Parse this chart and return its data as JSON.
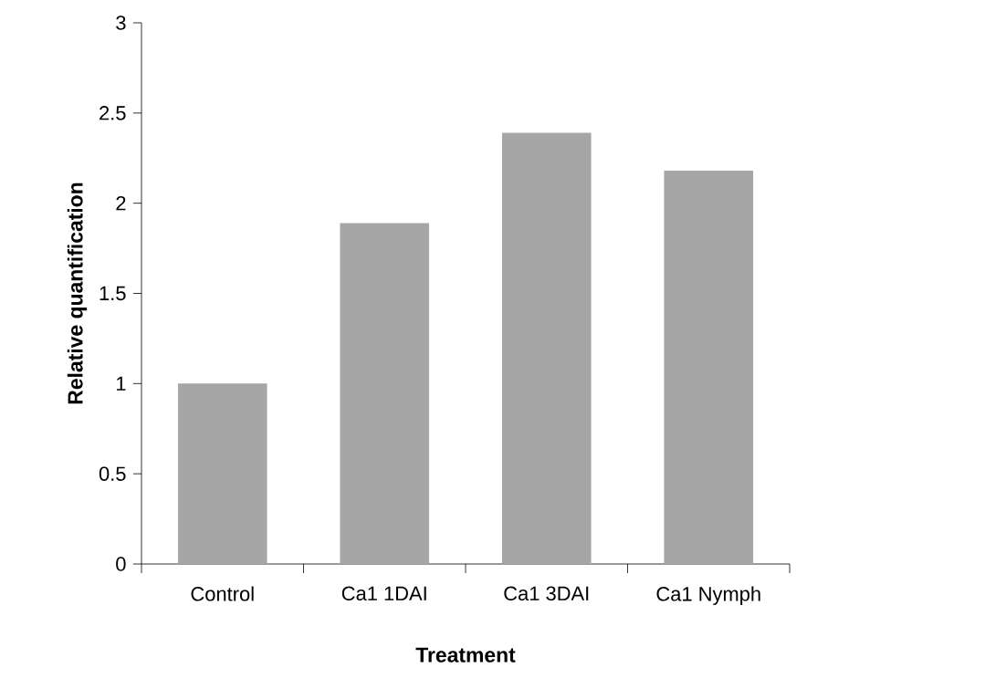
{
  "chart_data": {
    "type": "bar",
    "xlabel": "Treatment",
    "ylabel": "Relative quantification",
    "categories": [
      "Control",
      "Ca1 1DAI",
      "Ca1 3DAI",
      "Ca1 Nymph"
    ],
    "values": [
      1.0,
      1.89,
      2.39,
      2.18
    ],
    "color": "#a6a6a6",
    "ylim": [
      0,
      3
    ],
    "yticks": [
      0,
      0.5,
      1,
      1.5,
      2,
      2.5,
      3
    ],
    "grid": false
  }
}
